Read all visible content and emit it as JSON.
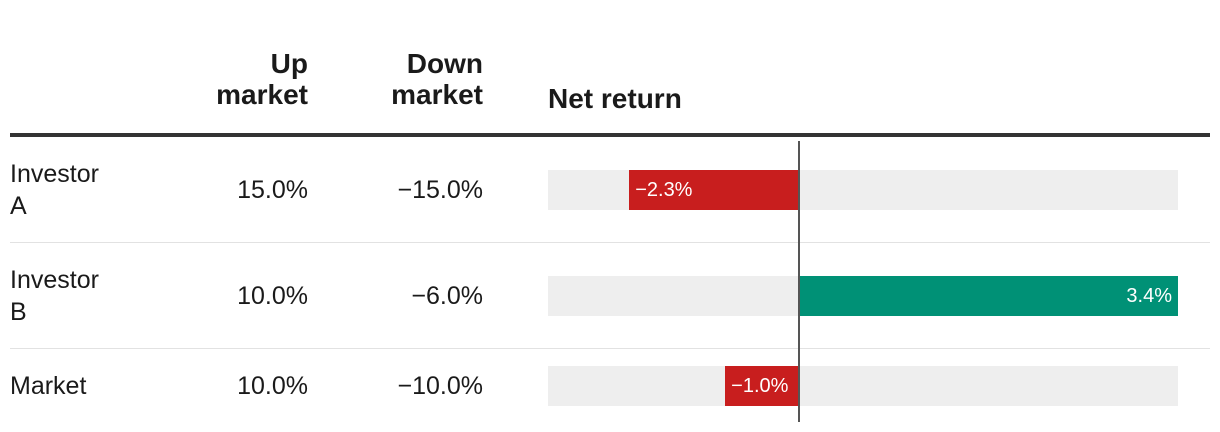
{
  "columns": {
    "up": [
      "Up",
      "market"
    ],
    "down": [
      "Down",
      "market"
    ],
    "net": "Net return"
  },
  "colors": {
    "negative": "#c81e1e",
    "positive": "#009176",
    "track": "#eeeeee"
  },
  "rows": [
    {
      "name": [
        "Investor",
        "A"
      ],
      "up": "15.0%",
      "down": "−15.0%",
      "net_label": "−2.3%"
    },
    {
      "name": [
        "Investor",
        "B"
      ],
      "up": "10.0%",
      "down": "−6.0%",
      "net_label": "3.4%"
    },
    {
      "name": [
        "Market"
      ],
      "up": "10.0%",
      "down": "−10.0%",
      "net_label": "−1.0%"
    }
  ],
  "chart_data": {
    "type": "bar",
    "orientation": "horizontal",
    "categories": [
      "Investor A",
      "Investor B",
      "Market"
    ],
    "values": [
      -2.3,
      3.4,
      -1.0
    ],
    "unit": "%",
    "xlim": [
      -3.4,
      3.4
    ]
  }
}
